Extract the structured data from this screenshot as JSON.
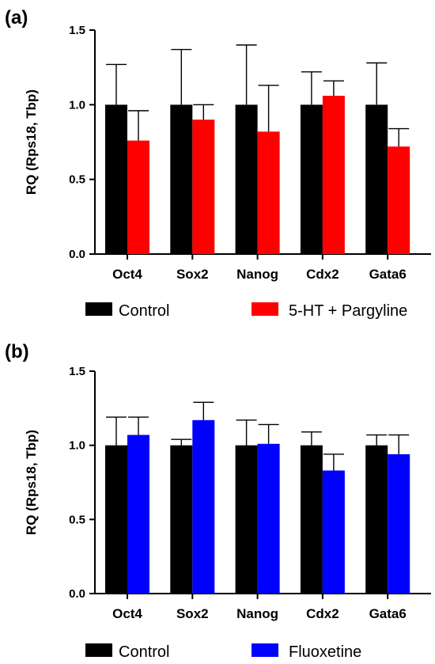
{
  "chart_data": [
    {
      "panel_label": "(a)",
      "type": "bar",
      "ylabel": "RQ (Rps18, Tbp)",
      "ylim": [
        0,
        1.5
      ],
      "yticks": [
        "0.0",
        "0.5",
        "1.0",
        "1.5"
      ],
      "categories": [
        "Oct4",
        "Sox2",
        "Nanog",
        "Cdx2",
        "Gata6"
      ],
      "series": [
        {
          "name": "Control",
          "color": "#000000",
          "values": [
            1.0,
            1.0,
            1.0,
            1.0,
            1.0
          ],
          "errors": [
            0.27,
            0.37,
            0.4,
            0.22,
            0.28
          ]
        },
        {
          "name": "5-HT + Pargyline",
          "color": "#ff0000",
          "values": [
            0.76,
            0.9,
            0.82,
            1.06,
            0.72
          ],
          "errors": [
            0.2,
            0.1,
            0.31,
            0.1,
            0.12
          ]
        }
      ],
      "grid": false,
      "legend_position": "bottom"
    },
    {
      "panel_label": "(b)",
      "type": "bar",
      "ylabel": "RQ (Rps18, Tbp)",
      "ylim": [
        0,
        1.5
      ],
      "yticks": [
        "0.0",
        "0.5",
        "1.0",
        "1.5"
      ],
      "categories": [
        "Oct4",
        "Sox2",
        "Nanog",
        "Cdx2",
        "Gata6"
      ],
      "series": [
        {
          "name": "Control",
          "color": "#000000",
          "values": [
            1.0,
            1.0,
            1.0,
            1.0,
            1.0
          ],
          "errors": [
            0.19,
            0.04,
            0.17,
            0.09,
            0.07
          ]
        },
        {
          "name": "Fluoxetine",
          "color": "#0000ff",
          "values": [
            1.07,
            1.17,
            1.01,
            0.83,
            0.94
          ],
          "errors": [
            0.12,
            0.12,
            0.13,
            0.11,
            0.13
          ]
        }
      ],
      "grid": false,
      "legend_position": "bottom"
    }
  ]
}
